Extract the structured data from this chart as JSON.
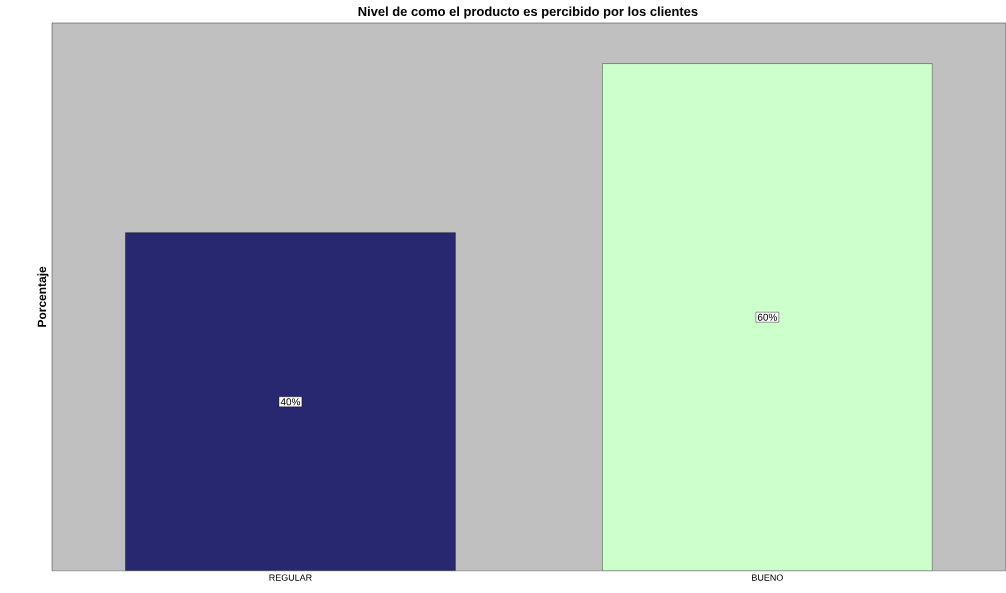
{
  "chart_data": {
    "type": "bar",
    "title": "Nivel de como el producto es percibido por los clientes",
    "ylabel": "Porcentaje",
    "categories": [
      "REGULAR",
      "BUENO"
    ],
    "values": [
      40,
      60
    ],
    "colors": [
      "#27286f",
      "#ccffcc"
    ],
    "value_labels": [
      "40%",
      "60%"
    ]
  }
}
